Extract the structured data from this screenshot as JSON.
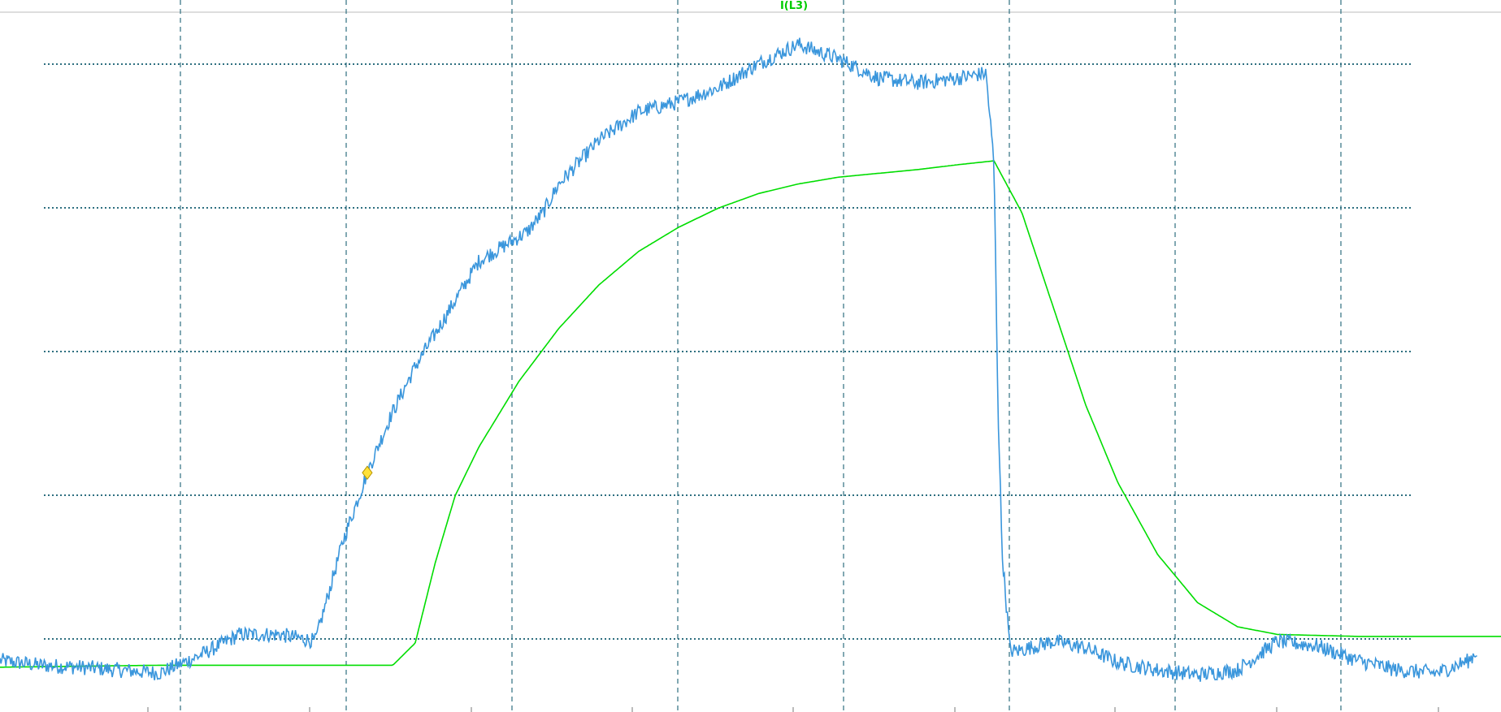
{
  "chart_data": {
    "type": "line",
    "title": "",
    "xlabel": "",
    "ylabel": "",
    "grid": true,
    "legend": "none",
    "series": [
      {
        "name": "I(L3)",
        "color": "#00dd00",
        "points": [
          [
            0,
            0.28
          ],
          [
            1,
            0.29
          ],
          [
            2,
            0.3
          ],
          [
            3,
            0.3
          ],
          [
            4,
            0.3
          ],
          [
            4.92,
            0.3
          ],
          [
            5.2,
            0.53
          ],
          [
            5.45,
            1.36
          ],
          [
            5.7,
            2.06
          ],
          [
            6.0,
            2.57
          ],
          [
            6.5,
            3.25
          ],
          [
            7.0,
            3.8
          ],
          [
            7.5,
            4.25
          ],
          [
            8.0,
            4.6
          ],
          [
            8.5,
            4.85
          ],
          [
            9.0,
            5.05
          ],
          [
            9.5,
            5.2
          ],
          [
            10,
            5.3
          ],
          [
            10.5,
            5.37
          ],
          [
            11,
            5.41
          ],
          [
            11.5,
            5.45
          ],
          [
            12.0,
            5.5
          ],
          [
            12.45,
            5.54
          ],
          [
            12.8,
            5.0
          ],
          [
            13.2,
            4.0
          ],
          [
            13.6,
            3.0
          ],
          [
            14.0,
            2.2
          ],
          [
            14.5,
            1.45
          ],
          [
            15.0,
            0.95
          ],
          [
            15.5,
            0.7
          ],
          [
            16.0,
            0.62
          ],
          [
            17,
            0.6
          ],
          [
            18,
            0.6
          ],
          [
            18.8,
            0.6
          ]
        ]
      },
      {
        "name": "",
        "color": "#3a96dc",
        "points": [
          [
            0,
            0.35
          ],
          [
            0.5,
            0.3
          ],
          [
            1,
            0.28
          ],
          [
            1.5,
            0.25
          ],
          [
            2,
            0.22
          ],
          [
            2.5,
            0.4
          ],
          [
            3,
            0.62
          ],
          [
            3.5,
            0.62
          ],
          [
            3.95,
            0.55
          ],
          [
            4.05,
            0.85
          ],
          [
            4.3,
            1.6
          ],
          [
            4.6,
            2.3
          ],
          [
            4.9,
            2.9
          ],
          [
            5.2,
            3.4
          ],
          [
            5.6,
            3.95
          ],
          [
            6.0,
            4.5
          ],
          [
            6.4,
            4.7
          ],
          [
            6.6,
            4.8
          ],
          [
            6.8,
            5.0
          ],
          [
            7.0,
            5.3
          ],
          [
            7.5,
            5.75
          ],
          [
            8.0,
            6.05
          ],
          [
            8.5,
            6.15
          ],
          [
            9.0,
            6.3
          ],
          [
            9.5,
            6.55
          ],
          [
            10.0,
            6.75
          ],
          [
            10.5,
            6.6
          ],
          [
            11.0,
            6.4
          ],
          [
            11.5,
            6.35
          ],
          [
            12.0,
            6.4
          ],
          [
            12.35,
            6.45
          ],
          [
            12.45,
            5.5
          ],
          [
            12.5,
            3.0
          ],
          [
            12.55,
            1.5
          ],
          [
            12.65,
            0.45
          ],
          [
            12.75,
            0.45
          ],
          [
            13.2,
            0.55
          ],
          [
            13.6,
            0.48
          ],
          [
            14.0,
            0.33
          ],
          [
            14.5,
            0.25
          ],
          [
            15.0,
            0.2
          ],
          [
            15.5,
            0.25
          ],
          [
            16.0,
            0.55
          ],
          [
            16.5,
            0.5
          ],
          [
            17.0,
            0.35
          ],
          [
            17.5,
            0.25
          ],
          [
            18.0,
            0.22
          ],
          [
            18.4,
            0.35
          ],
          [
            18.5,
            0.45
          ]
        ]
      }
    ],
    "cursor_point": [
      4.6,
      2.3
    ],
    "xlim": [
      0,
      18.8
    ],
    "ylim": [
      0,
      7
    ]
  },
  "labels": {
    "series_label": "I(L3)"
  },
  "colors": {
    "grid": "#2e6f80",
    "background": "#ffffff",
    "marker_fill": "#ffe13a",
    "marker_stroke": "#b79400"
  }
}
